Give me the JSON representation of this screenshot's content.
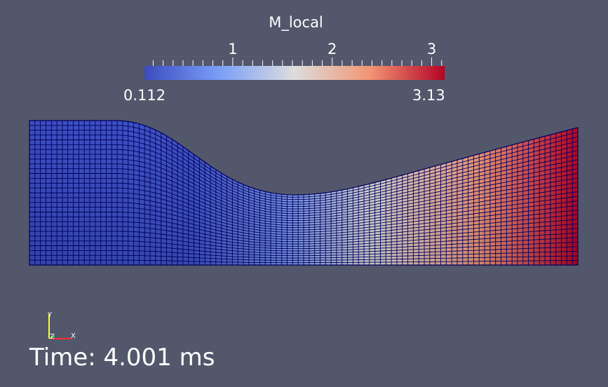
{
  "scalar_bar": {
    "title": "M_local",
    "min_label": "0.112",
    "max_label": "3.13",
    "min_value": 0.112,
    "max_value": 3.13,
    "ticks": [
      {
        "value": 1,
        "label": "1"
      },
      {
        "value": 2,
        "label": "2"
      },
      {
        "value": 3,
        "label": "3"
      }
    ],
    "colormap": "Cool to Warm",
    "colors": {
      "low": "#3b4cc0",
      "mid": "#dddddd",
      "high": "#b40426"
    }
  },
  "orientation_axes": {
    "x_label": "X",
    "y_label": "Y",
    "z_label": "Z",
    "x_color": "#ff3030",
    "y_color": "#ffff30",
    "z_color": "#30ff30"
  },
  "time_annotation": {
    "text": "Time: 4.001 ms"
  },
  "background_color": "#52576b",
  "mesh": {
    "edge_color": "#00005a"
  }
}
